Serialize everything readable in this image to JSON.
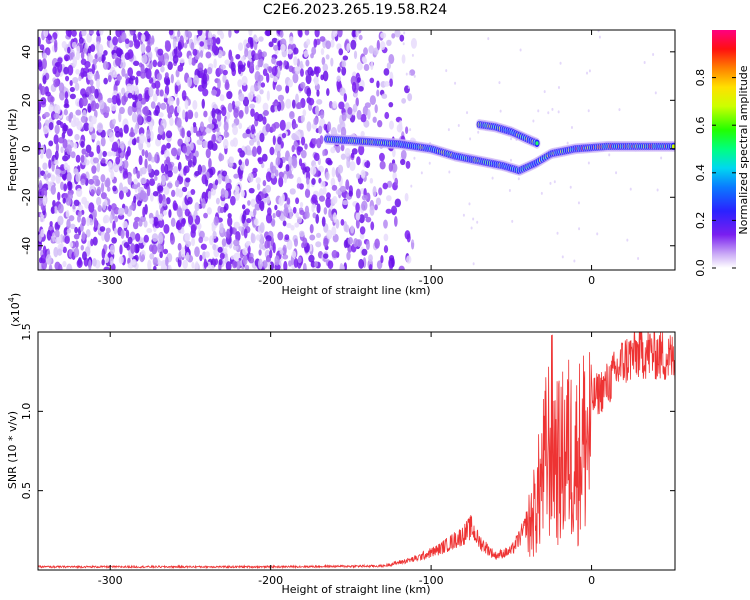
{
  "title": "C2E6.2023.265.19.58.R24",
  "chart_data": [
    {
      "type": "heatmap",
      "xlabel": "Height of straight line (km)",
      "ylabel": "Frequency (Hz)",
      "xlim": [
        -345,
        52
      ],
      "ylim": [
        -50,
        49
      ],
      "xticks": [
        -300,
        -200,
        -100,
        0
      ],
      "yticks": [
        -40,
        -20,
        0,
        20,
        40
      ],
      "xtick_labels": [
        "-300",
        "-200",
        "-100",
        "0"
      ],
      "ytick_labels": [
        "-40",
        "-20",
        "0",
        "20",
        "40"
      ],
      "colorbar": {
        "label": "Normalized spectral amplitude",
        "range": [
          0.0,
          1.0
        ],
        "ticks": [
          0.0,
          0.2,
          0.4,
          0.6,
          0.8
        ],
        "tick_labels": [
          "0.0",
          "0.2",
          "0.4",
          "0.6",
          "0.8"
        ]
      },
      "features": [
        {
          "name": "main-trace",
          "points": [
            [
              -165,
              4
            ],
            [
              -140,
              3
            ],
            [
              -120,
              2
            ],
            [
              -100,
              0
            ],
            [
              -85,
              -3
            ],
            [
              -70,
              -5
            ],
            [
              -55,
              -7
            ],
            [
              -45,
              -9
            ],
            [
              -35,
              -6
            ],
            [
              -25,
              -2
            ],
            [
              -10,
              0
            ],
            [
              10,
              1
            ],
            [
              30,
              1
            ],
            [
              52,
              1
            ]
          ]
        },
        {
          "name": "upper-branch",
          "points": [
            [
              -70,
              10
            ],
            [
              -60,
              9
            ],
            [
              -50,
              7
            ],
            [
              -40,
              4
            ],
            [
              -33,
              2
            ]
          ]
        }
      ]
    },
    {
      "type": "line",
      "xlabel": "Height of straight line (km)",
      "ylabel": "SNR (10 * v/v)",
      "multiplier_label": "(x10",
      "multiplier_exp": "4",
      "multiplier_close": ")",
      "xlim": [
        -345,
        52
      ],
      "ylim": [
        0,
        15000
      ],
      "xticks": [
        -300,
        -200,
        -100,
        0
      ],
      "yticks": [
        5000,
        10000,
        15000
      ],
      "xtick_labels": [
        "-300",
        "-200",
        "-100",
        "0"
      ],
      "ytick_labels": [
        "0.5",
        "1.0",
        "1.5"
      ],
      "color": "#ee3333",
      "envelope": [
        [
          -345,
          200
        ],
        [
          -200,
          200
        ],
        [
          -130,
          250
        ],
        [
          -110,
          700
        ],
        [
          -95,
          1300
        ],
        [
          -80,
          2200
        ],
        [
          -75,
          2700
        ],
        [
          -70,
          1800
        ],
        [
          -60,
          900
        ],
        [
          -50,
          1200
        ],
        [
          -42,
          2500
        ],
        [
          -35,
          5000
        ],
        [
          -30,
          8000
        ],
        [
          -25,
          11000
        ],
        [
          -20,
          8500
        ],
        [
          -15,
          10000
        ],
        [
          -10,
          9000
        ],
        [
          -5,
          10500
        ],
        [
          0,
          11000
        ],
        [
          10,
          12000
        ],
        [
          20,
          13500
        ],
        [
          30,
          14100
        ],
        [
          40,
          14000
        ],
        [
          52,
          13600
        ]
      ]
    }
  ]
}
